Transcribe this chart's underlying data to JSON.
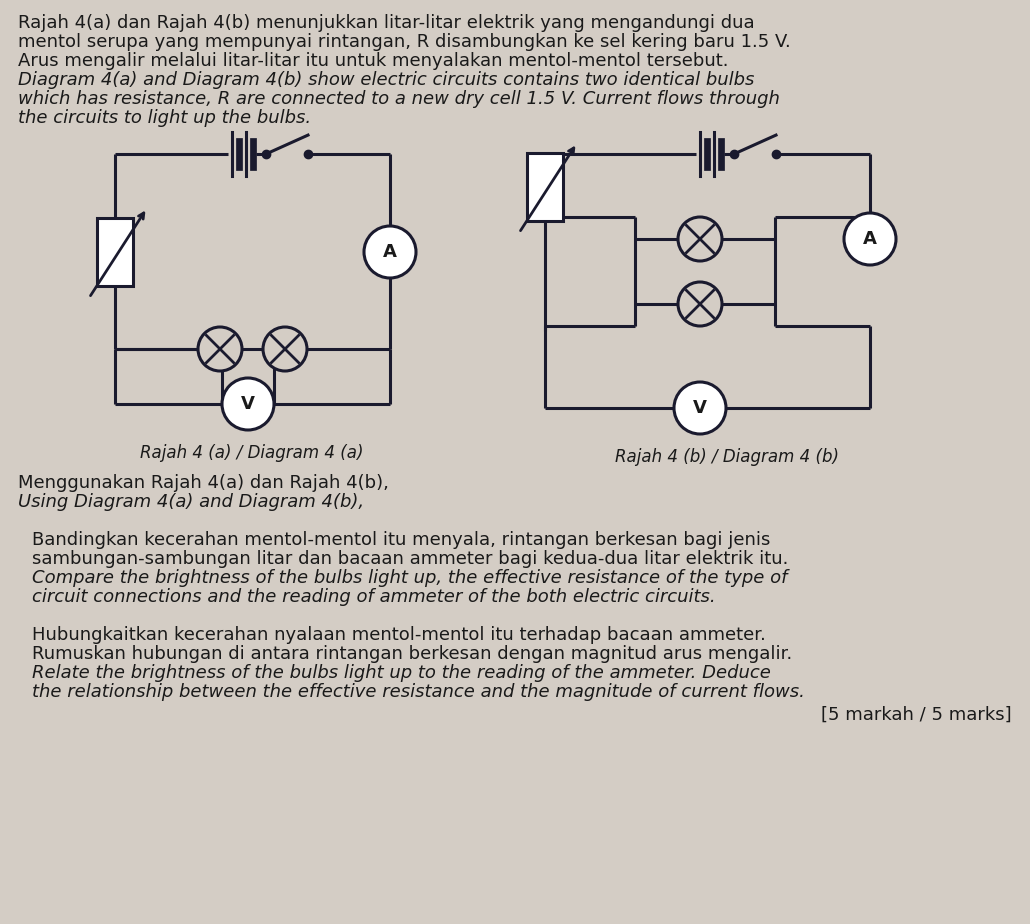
{
  "bg_color": "#d4cdc5",
  "line_color": "#1a1a2e",
  "text_color": "#1a1a1a",
  "title_lines": [
    {
      "text": "Rajah 4(a) dan Rajah 4(b) menunjukkan litar-litar elektrik yang mengandungi dua",
      "style": "normal"
    },
    {
      "text": "mentol serupa yang mempunyai rintangan, R disambungkan ke sel kering baru 1.5 V.",
      "style": "normal"
    },
    {
      "text": "Arus mengalir melalui litar-litar itu untuk menyalakan mentol-mentol tersebut.",
      "style": "normal"
    },
    {
      "text": "Diagram 4(a) and Diagram 4(b) show electric circuits contains two identical bulbs",
      "style": "italic"
    },
    {
      "text": "which has resistance, R are connected to a new dry cell 1.5 V. Current flows through",
      "style": "italic"
    },
    {
      "text": "the circuits to light up the bulbs.",
      "style": "italic"
    }
  ],
  "caption_a": "Rajah 4 (a) / Diagram 4 (a)",
  "caption_b": "Rajah 4 (b) / Diagram 4 (b)",
  "using_lines": [
    {
      "text": "Menggunakan Rajah 4(a) dan Rajah 4(b),",
      "style": "normal"
    },
    {
      "text": "Using Diagram 4(a) and Diagram 4(b),",
      "style": "italic"
    }
  ],
  "q1_lines": [
    {
      "text": "Bandingkan kecerahan mentol-mentol itu menyala, rintangan berkesan bagi jenis",
      "style": "normal"
    },
    {
      "text": "sambungan-sambungan litar dan bacaan ammeter bagi kedua-dua litar elektrik itu.",
      "style": "normal"
    },
    {
      "text": "Compare the brightness of the bulbs light up, the effective resistance of the type of",
      "style": "italic"
    },
    {
      "text": "circuit connections and the reading of ammeter of the both electric circuits.",
      "style": "italic"
    }
  ],
  "q2_lines": [
    {
      "text": "Hubungkaitkan kecerahan nyalaan mentol-mentol itu terhadap bacaan ammeter.",
      "style": "normal"
    },
    {
      "text": "Rumuskan hubungan di antara rintangan berkesan dengan magnitud arus mengalir.",
      "style": "normal"
    },
    {
      "text": "Relate the brightness of the bulbs light up to the reading of the ammeter. Deduce",
      "style": "italic"
    },
    {
      "text": "the relationship between the effective resistance and the magnitude of current flows.",
      "style": "italic"
    }
  ],
  "marks_text": "[5 markah / 5 marks]",
  "fs_body": 13.0,
  "fs_caption": 12.0,
  "lh": 0.185
}
